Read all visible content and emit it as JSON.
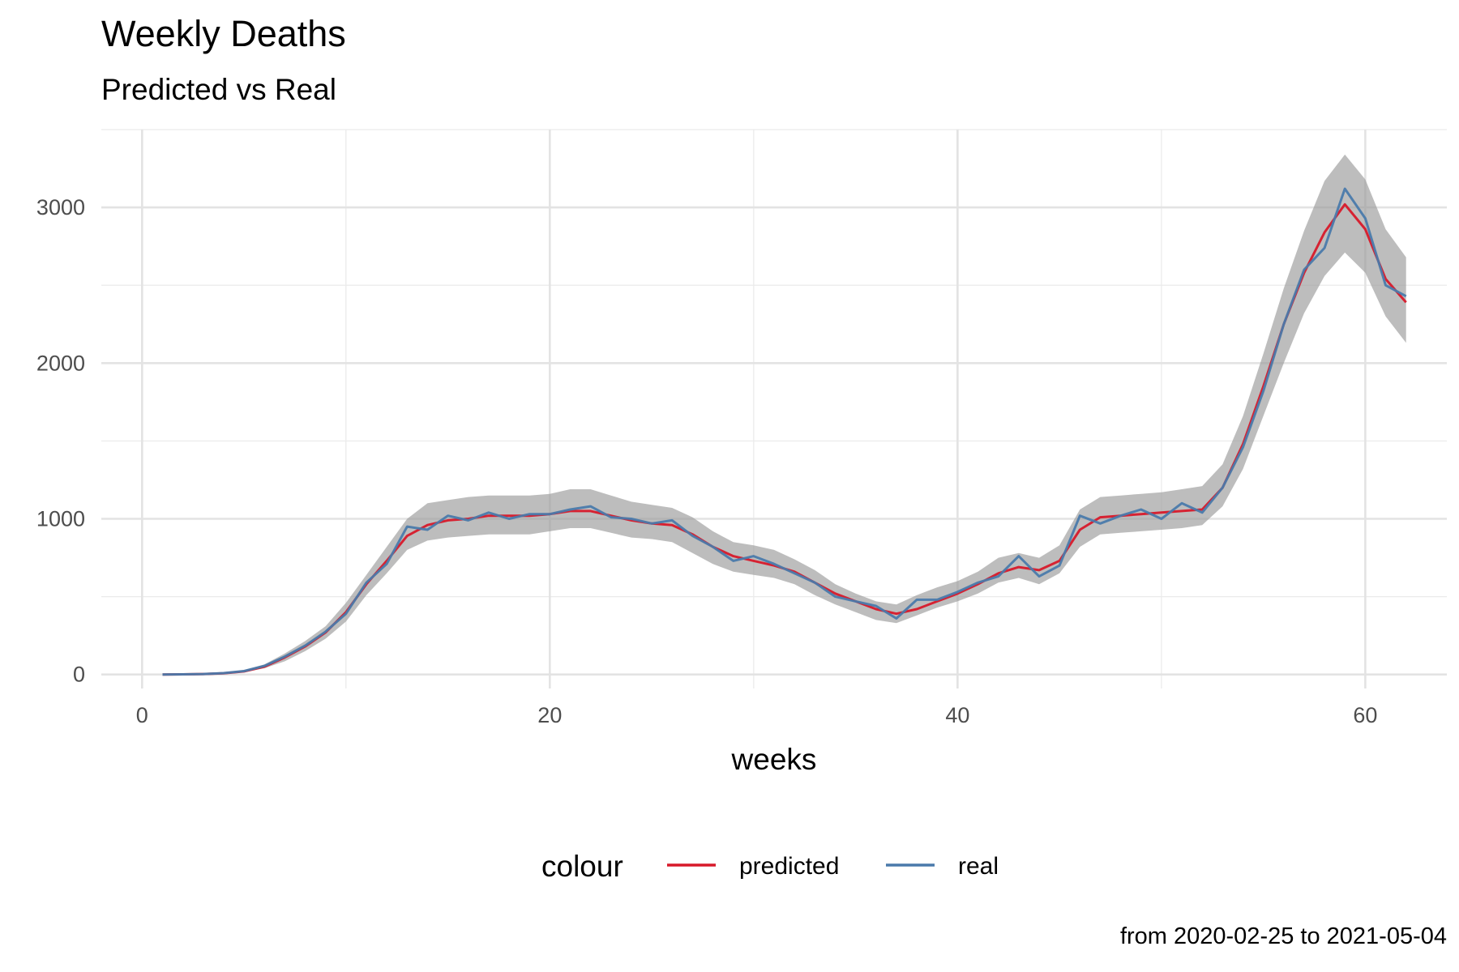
{
  "chart_data": {
    "type": "line",
    "title": "Weekly Deaths",
    "subtitle": "Predicted vs Real",
    "xlabel": "weeks",
    "ylabel": "",
    "caption": "from 2020-02-25 to 2021-05-04",
    "xlim": [
      -2,
      64
    ],
    "ylim": [
      -90,
      3500
    ],
    "x_ticks": [
      0,
      20,
      40,
      60
    ],
    "y_ticks": [
      0,
      1000,
      2000,
      3000
    ],
    "x_tick_labels": [
      "0",
      "20",
      "40",
      "60"
    ],
    "y_tick_labels": [
      "0",
      "1000",
      "2000",
      "3000"
    ],
    "grid": true,
    "legend_position": "bottom",
    "legend_title": "colour",
    "x": [
      1,
      2,
      3,
      4,
      5,
      6,
      7,
      8,
      9,
      10,
      11,
      12,
      13,
      14,
      15,
      16,
      17,
      18,
      19,
      20,
      21,
      22,
      23,
      24,
      25,
      26,
      27,
      28,
      29,
      30,
      31,
      32,
      33,
      34,
      35,
      36,
      37,
      38,
      39,
      40,
      41,
      42,
      43,
      44,
      45,
      46,
      47,
      48,
      49,
      50,
      51,
      52,
      53,
      54,
      55,
      56,
      57,
      58,
      59,
      60,
      61,
      62
    ],
    "series": [
      {
        "name": "predicted",
        "color": "#d7192a",
        "values": [
          0,
          1,
          3,
          8,
          20,
          50,
          110,
          180,
          270,
          400,
          580,
          730,
          890,
          960,
          990,
          1000,
          1020,
          1020,
          1020,
          1030,
          1050,
          1050,
          1020,
          990,
          970,
          960,
          900,
          820,
          760,
          730,
          700,
          660,
          590,
          520,
          470,
          420,
          390,
          420,
          470,
          520,
          580,
          650,
          690,
          670,
          730,
          930,
          1010,
          1020,
          1030,
          1040,
          1050,
          1060,
          1200,
          1480,
          1850,
          2250,
          2580,
          2840,
          3020,
          2860,
          2540,
          2390
        ]
      },
      {
        "name": "real",
        "color": "#4a7aab",
        "values": [
          0,
          1,
          3,
          9,
          22,
          55,
          115,
          185,
          275,
          390,
          590,
          710,
          950,
          930,
          1020,
          990,
          1040,
          1000,
          1030,
          1030,
          1060,
          1080,
          1010,
          1000,
          970,
          990,
          890,
          820,
          730,
          760,
          710,
          650,
          590,
          500,
          470,
          440,
          360,
          480,
          480,
          530,
          590,
          630,
          760,
          630,
          700,
          1020,
          970,
          1020,
          1060,
          1000,
          1100,
          1040,
          1200,
          1460,
          1820,
          2250,
          2600,
          2740,
          3120,
          2930,
          2500,
          2430
        ]
      }
    ],
    "band": {
      "color": "#999999",
      "lower": [
        0,
        0,
        1,
        5,
        15,
        40,
        85,
        150,
        230,
        340,
        510,
        650,
        800,
        860,
        880,
        890,
        900,
        900,
        900,
        920,
        940,
        940,
        910,
        880,
        870,
        850,
        780,
        710,
        660,
        640,
        620,
        580,
        510,
        450,
        400,
        350,
        330,
        380,
        430,
        470,
        520,
        590,
        620,
        580,
        650,
        820,
        900,
        910,
        920,
        930,
        940,
        960,
        1080,
        1320,
        1660,
        2000,
        2320,
        2560,
        2710,
        2580,
        2300,
        2130
      ],
      "upper": [
        0,
        1,
        5,
        12,
        28,
        65,
        135,
        215,
        310,
        460,
        640,
        820,
        1000,
        1100,
        1120,
        1140,
        1150,
        1150,
        1150,
        1160,
        1190,
        1190,
        1150,
        1110,
        1090,
        1070,
        1010,
        920,
        850,
        830,
        800,
        740,
        670,
        580,
        520,
        470,
        450,
        510,
        560,
        600,
        660,
        750,
        780,
        750,
        830,
        1060,
        1140,
        1150,
        1160,
        1170,
        1190,
        1210,
        1350,
        1660,
        2060,
        2480,
        2850,
        3170,
        3340,
        3180,
        2860,
        2680
      ]
    }
  }
}
